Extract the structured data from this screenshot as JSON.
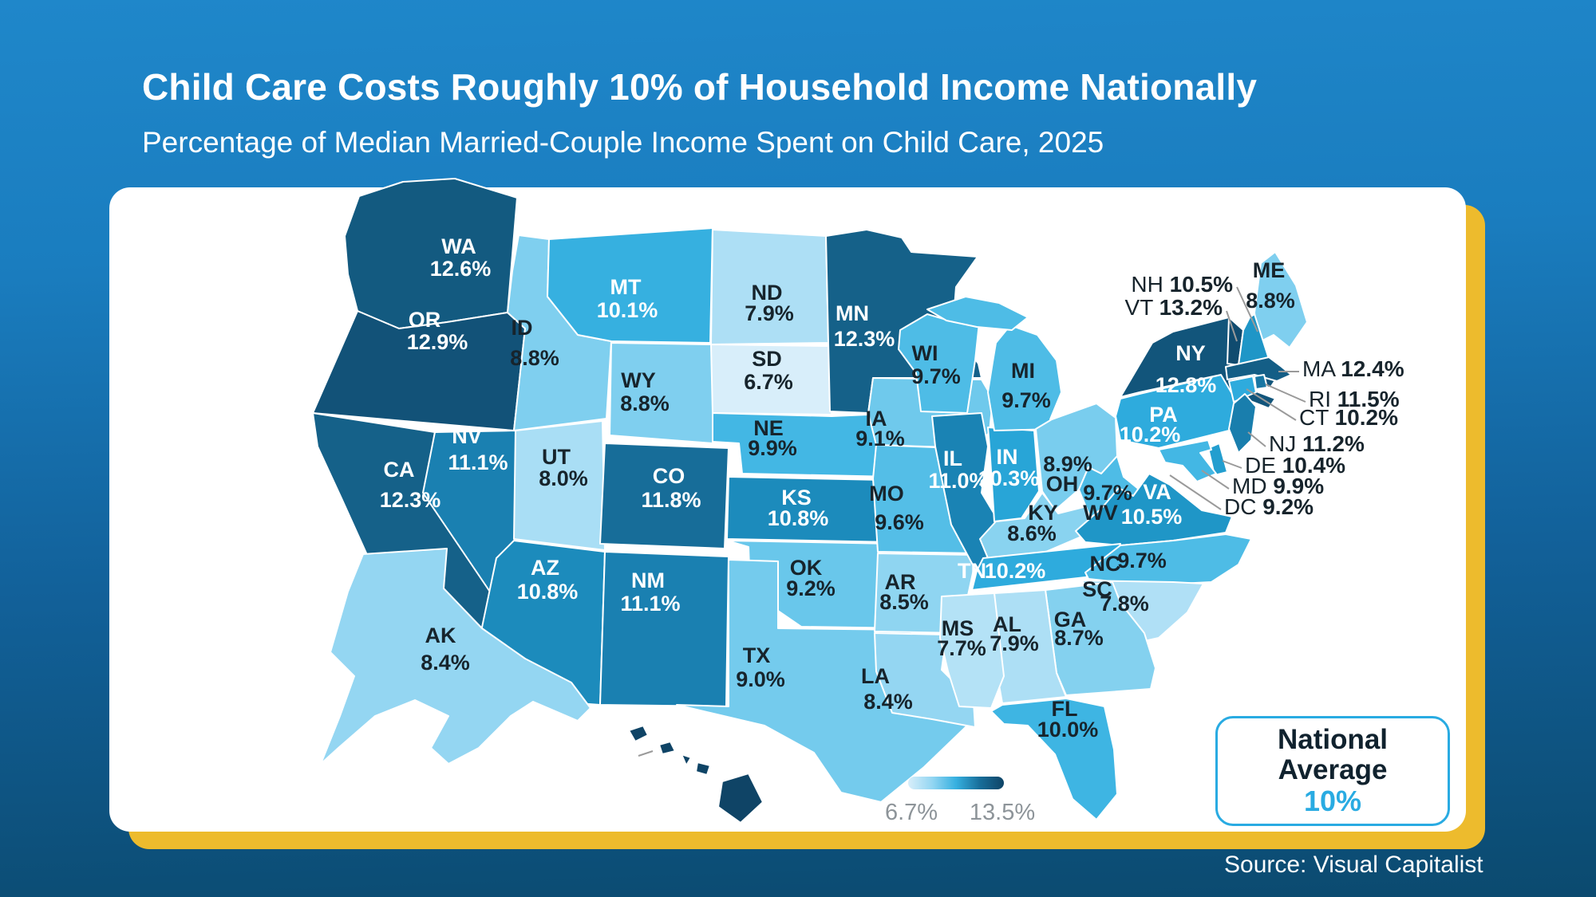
{
  "header": {
    "title": "Child Care Costs Roughly 10% of Household Income Nationally",
    "subtitle": "Percentage of Median Married-Couple Income Spent on Child Care, 2025"
  },
  "footer": {
    "source": "Source: Visual Capitalist"
  },
  "national_average_box": {
    "line1": "National",
    "line2": "Average",
    "value": "10%"
  },
  "legend": {
    "min_label": "6.7%",
    "max_label": "13.5%"
  },
  "colors": {
    "background_top": "#1f87ca",
    "background_bottom": "#0b4a6f",
    "card": "#ffffff",
    "card_shadow": "#edbb2d",
    "accent": "#29abe2",
    "scale_min": "#d8eefa",
    "scale_max": "#0f4466"
  },
  "chart_data": {
    "type": "choropleth",
    "title": "Child Care Costs Roughly 10% of Household Income Nationally",
    "subtitle": "Percentage of Median Married-Couple Income Spent on Child Care, 2025",
    "unit": "% of median married-couple income spent on child care",
    "legend": {
      "min": 6.7,
      "max": 13.5,
      "min_label": "6.7%",
      "max_label": "13.5%"
    },
    "national_average_pct": 10,
    "states": [
      {
        "abbr": "AL",
        "value": 7.9
      },
      {
        "abbr": "AK",
        "value": 8.4
      },
      {
        "abbr": "AZ",
        "value": 10.8
      },
      {
        "abbr": "AR",
        "value": 8.5
      },
      {
        "abbr": "CA",
        "value": 12.3
      },
      {
        "abbr": "CO",
        "value": 11.8
      },
      {
        "abbr": "CT",
        "value": 10.2
      },
      {
        "abbr": "DE",
        "value": 10.4
      },
      {
        "abbr": "DC",
        "value": 9.2
      },
      {
        "abbr": "FL",
        "value": 10.0
      },
      {
        "abbr": "GA",
        "value": 8.7
      },
      {
        "abbr": "HI",
        "value": 13.5
      },
      {
        "abbr": "ID",
        "value": 8.8
      },
      {
        "abbr": "IL",
        "value": 11.0
      },
      {
        "abbr": "IN",
        "value": 10.3
      },
      {
        "abbr": "IA",
        "value": 9.1
      },
      {
        "abbr": "KS",
        "value": 10.8
      },
      {
        "abbr": "KY",
        "value": 8.6
      },
      {
        "abbr": "LA",
        "value": 8.4
      },
      {
        "abbr": "ME",
        "value": 8.8
      },
      {
        "abbr": "MD",
        "value": 9.9
      },
      {
        "abbr": "MA",
        "value": 12.4
      },
      {
        "abbr": "MI",
        "value": 9.7
      },
      {
        "abbr": "MN",
        "value": 12.3
      },
      {
        "abbr": "MS",
        "value": 7.7
      },
      {
        "abbr": "MO",
        "value": 9.6
      },
      {
        "abbr": "MT",
        "value": 10.1
      },
      {
        "abbr": "NE",
        "value": 9.9
      },
      {
        "abbr": "NV",
        "value": 11.1
      },
      {
        "abbr": "NH",
        "value": 10.5
      },
      {
        "abbr": "NJ",
        "value": 11.2
      },
      {
        "abbr": "NM",
        "value": 11.1
      },
      {
        "abbr": "NY",
        "value": 12.8
      },
      {
        "abbr": "NC",
        "value": 9.7
      },
      {
        "abbr": "ND",
        "value": 7.9
      },
      {
        "abbr": "OH",
        "value": 8.9
      },
      {
        "abbr": "OK",
        "value": 9.2
      },
      {
        "abbr": "OR",
        "value": 12.9
      },
      {
        "abbr": "PA",
        "value": 10.2
      },
      {
        "abbr": "RI",
        "value": 11.5
      },
      {
        "abbr": "SC",
        "value": 7.8
      },
      {
        "abbr": "SD",
        "value": 6.7
      },
      {
        "abbr": "TN",
        "value": 10.2
      },
      {
        "abbr": "TX",
        "value": 9.0
      },
      {
        "abbr": "UT",
        "value": 8.0
      },
      {
        "abbr": "VT",
        "value": 13.2
      },
      {
        "abbr": "VA",
        "value": 10.5
      },
      {
        "abbr": "WA",
        "value": 12.6
      },
      {
        "abbr": "WV",
        "value": 9.7
      },
      {
        "abbr": "WI",
        "value": 9.7
      },
      {
        "abbr": "WY",
        "value": 8.8
      }
    ]
  }
}
